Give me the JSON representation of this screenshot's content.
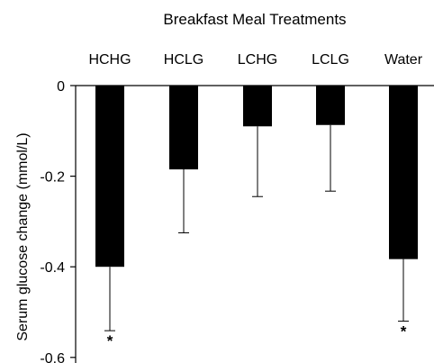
{
  "chart_data": {
    "type": "bar",
    "title": "Breakfast Meal Treatments",
    "ylabel": "Serum glucose change (mmol/L)",
    "xlabel": "",
    "categories": [
      "HCHG",
      "HCLG",
      "LCHG",
      "LCLG",
      "Water"
    ],
    "values": [
      -0.4,
      -0.185,
      -0.09,
      -0.087,
      -0.383
    ],
    "error_low": [
      0.541,
      0.325,
      0.245,
      0.233,
      0.52
    ],
    "significant_marker": [
      "*",
      "",
      "",
      "",
      "*"
    ],
    "ylim": [
      -0.6,
      0
    ],
    "yticks": [
      0,
      -0.2,
      -0.4,
      -0.6
    ],
    "ytick_labels": [
      "0",
      "-0.2",
      "-0.4",
      "-0.6"
    ],
    "grid": false,
    "bar_color": "#000000",
    "category_axis_position": "top"
  }
}
